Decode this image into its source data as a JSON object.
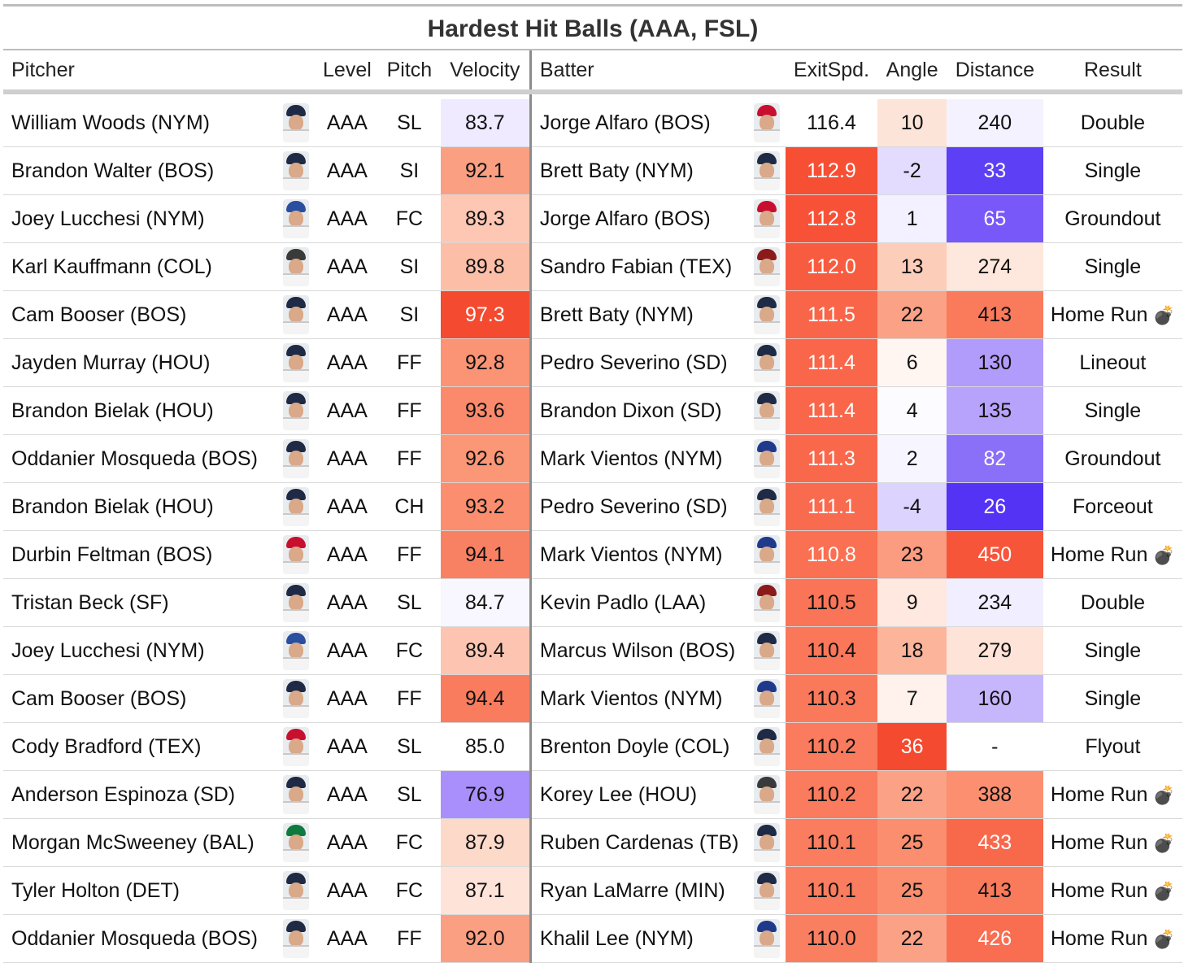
{
  "title": "Hardest Hit Balls (AAA, FSL)",
  "columns": {
    "pitcher": "Pitcher",
    "level": "Level",
    "pitch": "Pitch",
    "velocity": "Velocity",
    "batter": "Batter",
    "exitspd": "ExitSpd.",
    "angle": "Angle",
    "distance": "Distance",
    "result": "Result"
  },
  "rows": [
    {
      "pitcher": "William Woods (NYM)",
      "pitcher_cap": "#1f2a44",
      "level": "AAA",
      "pitch": "SL",
      "velocity": "83.7",
      "velocity_bg": "#efeaff",
      "batter": "Jorge Alfaro (BOS)",
      "batter_cap": "#c8102e",
      "exitspd": "116.4",
      "exitspd_bg": "#ffffff",
      "angle": "10",
      "angle_bg": "#fde4d8",
      "distance": "240",
      "distance_bg": "#f4f2ff",
      "result": "Double",
      "result_icon": ""
    },
    {
      "pitcher": "Brandon Walter (BOS)",
      "pitcher_cap": "#1f2a44",
      "level": "AAA",
      "pitch": "SI",
      "velocity": "92.1",
      "velocity_bg": "#fb9f82",
      "batter": "Brett Baty (NYM)",
      "batter_cap": "#1f2a44",
      "exitspd": "112.9",
      "exitspd_bg": "#f64f34",
      "angle": "-2",
      "angle_bg": "#e3dcff",
      "distance": "33",
      "distance_bg": "#5d3ff5",
      "result": "Single",
      "result_icon": ""
    },
    {
      "pitcher": "Joey Lucchesi (NYM)",
      "pitcher_cap": "#2a4fa0",
      "level": "AAA",
      "pitch": "FC",
      "velocity": "89.3",
      "velocity_bg": "#fdc7b3",
      "batter": "Jorge Alfaro (BOS)",
      "batter_cap": "#c8102e",
      "exitspd": "112.8",
      "exitspd_bg": "#f75237",
      "angle": "1",
      "angle_bg": "#f3f0ff",
      "distance": "65",
      "distance_bg": "#7858f8",
      "result": "Groundout",
      "result_icon": ""
    },
    {
      "pitcher": "Karl Kauffmann (COL)",
      "pitcher_cap": "#3a3a3a",
      "level": "AAA",
      "pitch": "SI",
      "velocity": "89.8",
      "velocity_bg": "#fdbea8",
      "batter": "Sandro Fabian (TEX)",
      "batter_cap": "#8b1a1a",
      "exitspd": "112.0",
      "exitspd_bg": "#f85c40",
      "angle": "13",
      "angle_bg": "#fccdb9",
      "distance": "274",
      "distance_bg": "#fee7dd",
      "result": "Single",
      "result_icon": ""
    },
    {
      "pitcher": "Cam Booser (BOS)",
      "pitcher_cap": "#1f2a44",
      "level": "AAA",
      "pitch": "SI",
      "velocity": "97.3",
      "velocity_bg": "#f44a2f",
      "batter": "Brett Baty (NYM)",
      "batter_cap": "#1f2a44",
      "exitspd": "111.5",
      "exitspd_bg": "#f96548",
      "angle": "22",
      "angle_bg": "#fba186",
      "distance": "413",
      "distance_bg": "#fa7a5c",
      "result": "Home Run",
      "result_icon": "💣"
    },
    {
      "pitcher": "Jayden Murray (HOU)",
      "pitcher_cap": "#1f2a44",
      "level": "AAA",
      "pitch": "FF",
      "velocity": "92.8",
      "velocity_bg": "#fb9474",
      "batter": "Pedro Severino (SD)",
      "batter_cap": "#1f2a44",
      "exitspd": "111.4",
      "exitspd_bg": "#f96649",
      "angle": "6",
      "angle_bg": "#fff6f2",
      "distance": "130",
      "distance_bg": "#b29cfb",
      "result": "Lineout",
      "result_icon": ""
    },
    {
      "pitcher": "Brandon Bielak (HOU)",
      "pitcher_cap": "#1f2a44",
      "level": "AAA",
      "pitch": "FF",
      "velocity": "93.6",
      "velocity_bg": "#fa8a6b",
      "batter": "Brandon Dixon (SD)",
      "batter_cap": "#1f2a44",
      "exitspd": "111.4",
      "exitspd_bg": "#f96649",
      "angle": "4",
      "angle_bg": "#fcfbff",
      "distance": "135",
      "distance_bg": "#b7a3fb",
      "result": "Single",
      "result_icon": ""
    },
    {
      "pitcher": "Oddanier Mosqueda (BOS)",
      "pitcher_cap": "#1f2a44",
      "level": "AAA",
      "pitch": "FF",
      "velocity": "92.6",
      "velocity_bg": "#fb9676",
      "batter": "Mark Vientos (NYM)",
      "batter_cap": "#1f3a8a",
      "exitspd": "111.3",
      "exitspd_bg": "#f9684b",
      "angle": "2",
      "angle_bg": "#f7f5ff",
      "distance": "82",
      "distance_bg": "#8a6ff9",
      "result": "Groundout",
      "result_icon": ""
    },
    {
      "pitcher": "Brandon Bielak (HOU)",
      "pitcher_cap": "#1f2a44",
      "level": "AAA",
      "pitch": "CH",
      "velocity": "93.2",
      "velocity_bg": "#fa8e6f",
      "batter": "Pedro Severino (SD)",
      "batter_cap": "#1f2a44",
      "exitspd": "111.1",
      "exitspd_bg": "#f96b4e",
      "angle": "-4",
      "angle_bg": "#ddd3ff",
      "distance": "26",
      "distance_bg": "#5433f4",
      "result": "Forceout",
      "result_icon": ""
    },
    {
      "pitcher": "Durbin Feltman (BOS)",
      "pitcher_cap": "#c8102e",
      "level": "AAA",
      "pitch": "FF",
      "velocity": "94.1",
      "velocity_bg": "#f98163",
      "batter": "Mark Vientos (NYM)",
      "batter_cap": "#1f3a8a",
      "exitspd": "110.8",
      "exitspd_bg": "#fa7052",
      "angle": "23",
      "angle_bg": "#fb9b80",
      "distance": "450",
      "distance_bg": "#f6553a",
      "result": "Home Run",
      "result_icon": "💣"
    },
    {
      "pitcher": "Tristan Beck (SF)",
      "pitcher_cap": "#1f2a44",
      "level": "AAA",
      "pitch": "SL",
      "velocity": "84.7",
      "velocity_bg": "#f8f6ff",
      "batter": "Kevin Padlo (LAA)",
      "batter_cap": "#8b1a1a",
      "exitspd": "110.5",
      "exitspd_bg": "#fa7557",
      "angle": "9",
      "angle_bg": "#fee8df",
      "distance": "234",
      "distance_bg": "#f1eeff",
      "result": "Double",
      "result_icon": ""
    },
    {
      "pitcher": "Joey Lucchesi (NYM)",
      "pitcher_cap": "#2a4fa0",
      "level": "AAA",
      "pitch": "FC",
      "velocity": "89.4",
      "velocity_bg": "#fdc5b1",
      "batter": "Marcus Wilson (BOS)",
      "batter_cap": "#1f2a44",
      "exitspd": "110.4",
      "exitspd_bg": "#fa7759",
      "angle": "18",
      "angle_bg": "#fcb49b",
      "distance": "279",
      "distance_bg": "#fee3d8",
      "result": "Single",
      "result_icon": ""
    },
    {
      "pitcher": "Cam Booser (BOS)",
      "pitcher_cap": "#1f2a44",
      "level": "AAA",
      "pitch": "FF",
      "velocity": "94.4",
      "velocity_bg": "#f97c5e",
      "batter": "Mark Vientos (NYM)",
      "batter_cap": "#1f3a8a",
      "exitspd": "110.3",
      "exitspd_bg": "#fa795b",
      "angle": "7",
      "angle_bg": "#fff2ec",
      "distance": "160",
      "distance_bg": "#c6b6fc",
      "result": "Single",
      "result_icon": ""
    },
    {
      "pitcher": "Cody Bradford (TEX)",
      "pitcher_cap": "#c8102e",
      "level": "AAA",
      "pitch": "SL",
      "velocity": "85.0",
      "velocity_bg": "#ffffff",
      "batter": "Brenton Doyle (COL)",
      "batter_cap": "#1f2a44",
      "exitspd": "110.2",
      "exitspd_bg": "#fa7b5d",
      "angle": "36",
      "angle_bg": "#f44a2f",
      "distance": "-",
      "distance_bg": "#ffffff",
      "result": "Flyout",
      "result_icon": ""
    },
    {
      "pitcher": "Anderson Espinoza (SD)",
      "pitcher_cap": "#1f2a44",
      "level": "AAA",
      "pitch": "SL",
      "velocity": "76.9",
      "velocity_bg": "#a98ffb",
      "batter": "Korey Lee (HOU)",
      "batter_cap": "#3a3a3a",
      "exitspd": "110.2",
      "exitspd_bg": "#fa7b5d",
      "angle": "22",
      "angle_bg": "#fba186",
      "distance": "388",
      "distance_bg": "#fb8f70",
      "result": "Home Run",
      "result_icon": "💣"
    },
    {
      "pitcher": "Morgan McSweeney (BAL)",
      "pitcher_cap": "#0e7a3d",
      "level": "AAA",
      "pitch": "FC",
      "velocity": "87.9",
      "velocity_bg": "#fdd9ca",
      "batter": "Ruben Cardenas (TB)",
      "batter_cap": "#1f2a44",
      "exitspd": "110.1",
      "exitspd_bg": "#fa7d5f",
      "angle": "25",
      "angle_bg": "#fa8e6f",
      "distance": "433",
      "distance_bg": "#f8694c",
      "result": "Home Run",
      "result_icon": "💣"
    },
    {
      "pitcher": "Tyler Holton (DET)",
      "pitcher_cap": "#1f2a44",
      "level": "AAA",
      "pitch": "FC",
      "velocity": "87.1",
      "velocity_bg": "#fee3d8",
      "batter": "Ryan LaMarre (MIN)",
      "batter_cap": "#1f2a44",
      "exitspd": "110.1",
      "exitspd_bg": "#fa7d5f",
      "angle": "25",
      "angle_bg": "#fa8e6f",
      "distance": "413",
      "distance_bg": "#fa7a5c",
      "result": "Home Run",
      "result_icon": "💣"
    },
    {
      "pitcher": "Oddanier Mosqueda (BOS)",
      "pitcher_cap": "#1f2a44",
      "level": "AAA",
      "pitch": "FF",
      "velocity": "92.0",
      "velocity_bg": "#fb9f82",
      "batter": "Khalil Lee (NYM)",
      "batter_cap": "#1f3a8a",
      "exitspd": "110.0",
      "exitspd_bg": "#fa7f61",
      "angle": "22",
      "angle_bg": "#fba186",
      "distance": "426",
      "distance_bg": "#f96e51",
      "result": "Home Run",
      "result_icon": "💣"
    }
  ]
}
